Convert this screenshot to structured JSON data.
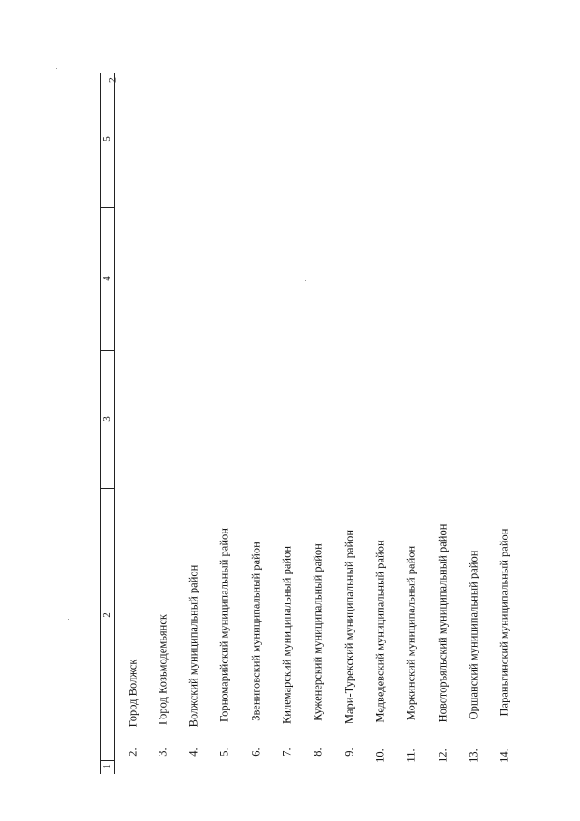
{
  "page_number": "2",
  "table": {
    "column_headers": [
      "1",
      "2",
      "3",
      "4",
      "5"
    ],
    "rows": [
      {
        "num": "2.",
        "name": "Город Волжск"
      },
      {
        "num": "3.",
        "name": "Город Козьмодемьянск"
      },
      {
        "num": "4.",
        "name": "Волжский муниципальный район"
      },
      {
        "num": "5.",
        "name": "Горномарийский муниципальный район"
      },
      {
        "num": "6.",
        "name": "Звениговский муниципальный район"
      },
      {
        "num": "7.",
        "name": "Килемарский муниципальный район"
      },
      {
        "num": "8.",
        "name": "Куженерский муниципальный район"
      },
      {
        "num": "9.",
        "name": "Мари-Турекский муниципальный район"
      },
      {
        "num": "10.",
        "name": "Медведевский муниципальный район"
      },
      {
        "num": "11.",
        "name": "Моркинский муниципальный район"
      },
      {
        "num": "12.",
        "name": "Новоторъяльский муниципальный район"
      },
      {
        "num": "13.",
        "name": "Оршанский муниципальный район"
      },
      {
        "num": "14.",
        "name": "Параньгинский муниципальный район"
      }
    ]
  }
}
